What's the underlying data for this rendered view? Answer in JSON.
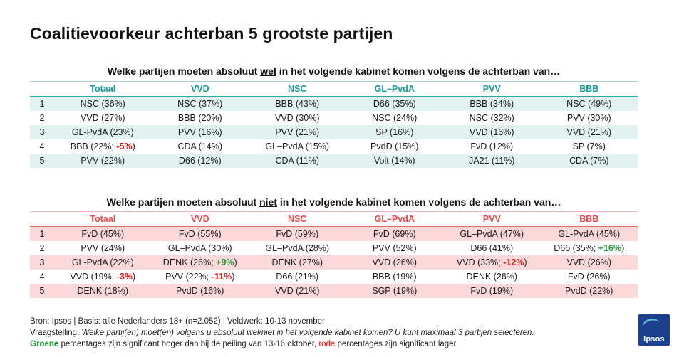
{
  "title": "Coalitievoorkeur achterban 5 grootste partijen",
  "wel": {
    "q_pre": "Welke partijen moeten absoluut ",
    "q_key": "wel",
    "q_post": " in het volgende kabinet komen volgens de achterban van…",
    "headers": [
      "Totaal",
      "VVD",
      "NSC",
      "GL–PvdA",
      "PVV",
      "BBB"
    ],
    "rows": [
      {
        "rank": "1",
        "cells": [
          [
            "NSC (36%)"
          ],
          [
            "NSC (37%)"
          ],
          [
            "BBB (43%)"
          ],
          [
            "D66 (35%)"
          ],
          [
            "BBB (34%)"
          ],
          [
            "NSC (49%)"
          ]
        ]
      },
      {
        "rank": "2",
        "cells": [
          [
            "VVD (27%)"
          ],
          [
            "BBB (20%)"
          ],
          [
            "VVD (30%)"
          ],
          [
            "NSC (24%)"
          ],
          [
            "NSC (32%)"
          ],
          [
            "PVV (30%)"
          ]
        ]
      },
      {
        "rank": "3",
        "cells": [
          [
            "GL-PvdA (23%)"
          ],
          [
            "PVV (16%)"
          ],
          [
            "PVV (21%)"
          ],
          [
            "SP (16%)"
          ],
          [
            "VVD (16%)"
          ],
          [
            "VVD (21%)"
          ]
        ]
      },
      {
        "rank": "4",
        "cells": [
          [
            "BBB (22%; ",
            "-5%",
            ")",
            "neg"
          ],
          [
            "CDA (14%)"
          ],
          [
            "GL–PvdA (15%)"
          ],
          [
            "PvdD (15%)"
          ],
          [
            "FvD (12%)"
          ],
          [
            "SP (7%)"
          ]
        ]
      },
      {
        "rank": "5",
        "cells": [
          [
            "PVV (22%)"
          ],
          [
            "D66 (12%)"
          ],
          [
            "CDA (11%)"
          ],
          [
            "Volt (14%)"
          ],
          [
            "JA21 (11%)"
          ],
          [
            "CDA (7%)"
          ]
        ]
      }
    ]
  },
  "niet": {
    "q_pre": "Welke partijen moeten absoluut ",
    "q_key": "niet",
    "q_post": " in het volgende kabinet komen volgens de achterban van…",
    "headers": [
      "Totaal",
      "VVD",
      "NSC",
      "GL–PvdA",
      "PVV",
      "BBB"
    ],
    "rows": [
      {
        "rank": "1",
        "cells": [
          [
            "FvD (45%)"
          ],
          [
            "FvD (55%)"
          ],
          [
            "FvD (59%)"
          ],
          [
            "FvD (69%)"
          ],
          [
            "GL–PvdA (47%)"
          ],
          [
            "GL-PvdA (45%)"
          ]
        ]
      },
      {
        "rank": "2",
        "cells": [
          [
            "PVV (24%)"
          ],
          [
            "GL–PvdA (30%)"
          ],
          [
            "GL–PvdA (28%)"
          ],
          [
            "PVV (52%)"
          ],
          [
            "D66 (41%)"
          ],
          [
            "D66 (35%; ",
            "+16%",
            ")",
            "pos"
          ]
        ]
      },
      {
        "rank": "3",
        "cells": [
          [
            "GL-PvdA (22%)"
          ],
          [
            "DENK (26%; ",
            "+9%",
            ")",
            "pos"
          ],
          [
            "DENK (27%)"
          ],
          [
            "VVD (26%)"
          ],
          [
            "VVD (33%; ",
            "-12%",
            ")",
            "neg"
          ],
          [
            "VVD (26%)"
          ]
        ]
      },
      {
        "rank": "4",
        "cells": [
          [
            "VVD (19%; ",
            "-3%",
            ")",
            "neg"
          ],
          [
            "PVV (22%; ",
            "-11%",
            ")",
            "neg"
          ],
          [
            "D66 (21%)"
          ],
          [
            "BBB (19%)"
          ],
          [
            "DENK (26%)"
          ],
          [
            "FvD (26%)"
          ]
        ]
      },
      {
        "rank": "5",
        "cells": [
          [
            "DENK (18%)"
          ],
          [
            "PvdD (16%)"
          ],
          [
            "VVD (21%)"
          ],
          [
            "SGP (19%)"
          ],
          [
            "FvD (19%)"
          ],
          [
            "PvdD (22%)"
          ]
        ]
      }
    ]
  },
  "footer": {
    "line1": "Bron: Ipsos | Basis: alle Nederlanders  18+ (n=2.052) | Veldwerk: 10-13 november",
    "line2_label": "Vraagstelling: ",
    "line2_text": "Welke partij(en) moet(en) volgens u absoluut wel/niet in het volgende  kabinet komen? U kunt maximaal 3 partijen  selecteren.",
    "line3_green": "Groene",
    "line3_mid": " percentages zijn significant hoger dan bij de peiling van 13-16 oktober, ",
    "line3_red": "rode",
    "line3_end": " percentages zijn significant lager"
  },
  "logo": {
    "text": "Ipsos",
    "color": "#1d3f8f"
  },
  "colors": {
    "wel_accent": "#1a9a99",
    "wel_band": "#e2f2f1",
    "niet_accent": "#e64a4a",
    "niet_band": "#fbd9da",
    "positive": "#1d9a3a",
    "negative": "#e01818"
  }
}
